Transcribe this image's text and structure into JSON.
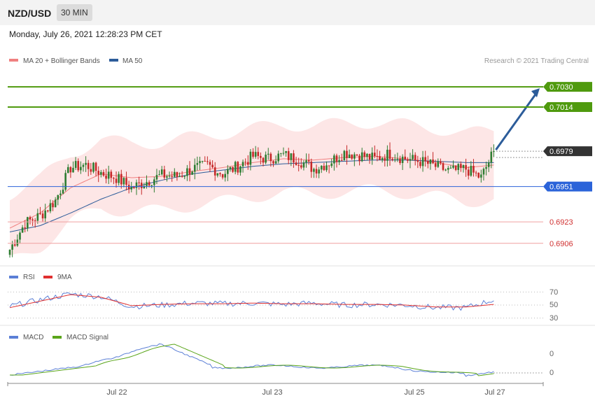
{
  "header": {
    "symbol": "NZD/USD",
    "timeframe": "30 MIN"
  },
  "datetime": "Monday, July 26, 2021 12:28:23 PM CET",
  "price_panel": {
    "legend": [
      {
        "label": "MA 20 + Bollinger Bands",
        "color": "#f08080"
      },
      {
        "label": "MA 50",
        "color": "#2c5c9a"
      }
    ],
    "credit": "Research © 2021 Trading Central",
    "levels": [
      {
        "label": "0.7030",
        "value": 0.703,
        "color": "#4f9a0e",
        "style": "tag"
      },
      {
        "label": "0.7014",
        "value": 0.7014,
        "color": "#4f9a0e",
        "style": "tag"
      },
      {
        "label": "0.6979",
        "value": 0.6979,
        "color": "#333333",
        "style": "current"
      },
      {
        "label": "0.6951",
        "value": 0.6951,
        "color": "#2b63d9",
        "style": "tag"
      },
      {
        "label": "0.6923",
        "value": 0.6923,
        "color": "#d03030",
        "style": "text"
      },
      {
        "label": "0.6906",
        "value": 0.6906,
        "color": "#d03030",
        "style": "text"
      }
    ],
    "y_range": [
      0.6892,
      0.706
    ]
  },
  "rsi_panel": {
    "legend": [
      {
        "label": "RSI",
        "color": "#5b7fd6"
      },
      {
        "label": "9MA",
        "color": "#e03030"
      }
    ],
    "ticks": [
      "70",
      "50",
      "30"
    ]
  },
  "macd_panel": {
    "legend": [
      {
        "label": "MACD",
        "color": "#5b7fd6"
      },
      {
        "label": "MACD Signal",
        "color": "#5aa51a"
      }
    ],
    "ticks": [
      "0",
      "0"
    ]
  },
  "x_axis": {
    "labels": [
      "Jul 22",
      "Jul 23",
      "Jul 25",
      "Jul 27"
    ]
  },
  "chart_data": {
    "type": "line",
    "title": "NZD/USD",
    "timeframe": "30 MIN",
    "x_labels": [
      "Jul 22",
      "Jul 23",
      "Jul 25",
      "Jul 27"
    ],
    "ylim": [
      0.6892,
      0.706
    ],
    "series": [
      {
        "name": "NZD/USD",
        "x": [
          0,
          6,
          12,
          18,
          24,
          30,
          36,
          42,
          48,
          54,
          60,
          66,
          72,
          78,
          84,
          90,
          96,
          102,
          108,
          114,
          120,
          126,
          132,
          138,
          144,
          150,
          156,
          162,
          168,
          174,
          180,
          186,
          191
        ],
        "values": [
          0.6901,
          0.6922,
          0.6928,
          0.694,
          0.6966,
          0.6968,
          0.6962,
          0.6958,
          0.695,
          0.6955,
          0.696,
          0.6959,
          0.6965,
          0.6968,
          0.6961,
          0.6967,
          0.6975,
          0.6973,
          0.6976,
          0.6972,
          0.6965,
          0.697,
          0.6978,
          0.6976,
          0.6973,
          0.6977,
          0.6973,
          0.6971,
          0.6967,
          0.6963,
          0.6965,
          0.6958,
          0.6979
        ]
      },
      {
        "name": "MA 20",
        "x": [
          0,
          12,
          24,
          36,
          48,
          60,
          72,
          84,
          96,
          108,
          120,
          132,
          144,
          156,
          168,
          180,
          191
        ],
        "values": [
          0.6918,
          0.693,
          0.695,
          0.6961,
          0.6958,
          0.6959,
          0.6963,
          0.6966,
          0.697,
          0.6973,
          0.6972,
          0.6974,
          0.6975,
          0.6973,
          0.697,
          0.6966,
          0.6968
        ]
      },
      {
        "name": "MA 50",
        "x": [
          0,
          12,
          24,
          36,
          48,
          60,
          72,
          84,
          96,
          108,
          120,
          132,
          144,
          156,
          168,
          180,
          191
        ],
        "values": [
          0.6915,
          0.692,
          0.693,
          0.6941,
          0.695,
          0.6956,
          0.6961,
          0.6964,
          0.6967,
          0.6969,
          0.697,
          0.6971,
          0.6972,
          0.6972,
          0.6971,
          0.697,
          0.697
        ]
      },
      {
        "name": "RSI",
        "x": [
          0,
          12,
          24,
          36,
          48,
          60,
          72,
          84,
          96,
          108,
          120,
          132,
          144,
          156,
          168,
          180,
          191
        ],
        "values": [
          48,
          58,
          67,
          63,
          48,
          50,
          53,
          52,
          53,
          51,
          53,
          50,
          51,
          50,
          46,
          46,
          58
        ]
      },
      {
        "name": "9MA",
        "x": [
          0,
          12,
          24,
          36,
          48,
          60,
          72,
          84,
          96,
          108,
          120,
          132,
          144,
          156,
          168,
          180,
          191
        ],
        "values": [
          46,
          56,
          66,
          62,
          49,
          51,
          52,
          52,
          53,
          52,
          52,
          51,
          51,
          50,
          47,
          47,
          51
        ]
      }
    ]
  }
}
